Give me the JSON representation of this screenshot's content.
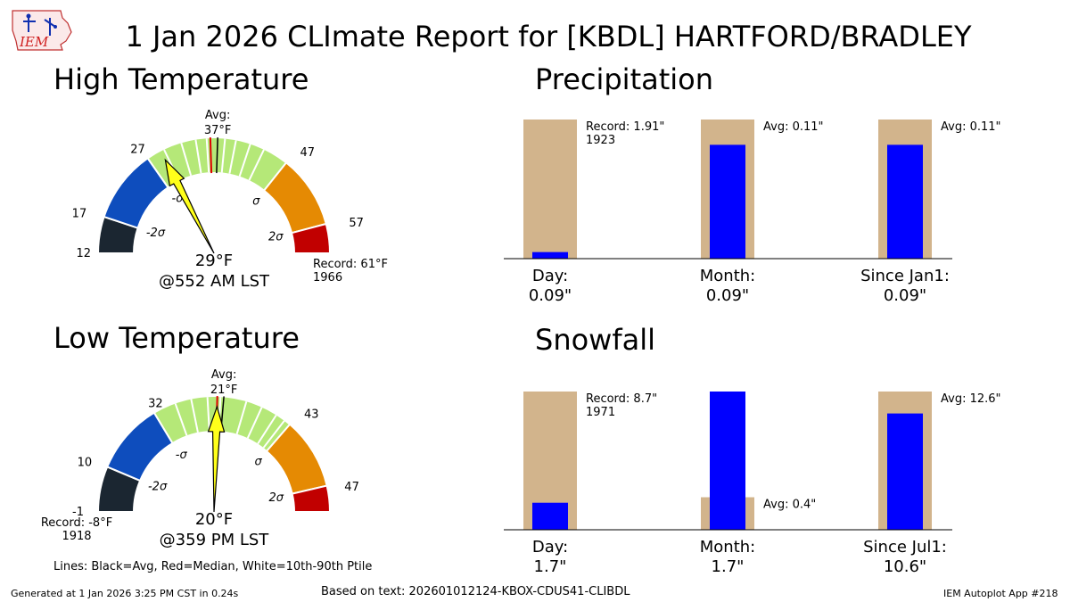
{
  "title": "1 Jan 2026 CLImate Report for [KBDL] HARTFORD/BRADLEY",
  "logo_text": "IEM",
  "colors": {
    "gauge_minus3": "#1b2631",
    "gauge_minus2": "#0e4dbd",
    "gauge_mid": "#b5e878",
    "gauge_plus2": "#e58a03",
    "gauge_plus3": "#c10000",
    "avg_line": "#000000",
    "median_line": "#e00000",
    "needle": "#ffff1a",
    "bar_bg": "#d2b48c",
    "bar_fg": "#0000ff"
  },
  "footer": {
    "lines_note": "Lines: Black=Avg, Red=Median, White=10th-90th Ptile",
    "generated": "Generated at 1 Jan 2026 3:25 PM CST in 0.24s",
    "based_on": "Based on text: 202601012124-KBOX-CDUS41-CLIBDL",
    "app": "IEM Autoplot App #218"
  },
  "chart_data": [
    {
      "type": "gauge",
      "title": "High Temperature",
      "range": [
        12,
        61
      ],
      "boundaries": [
        12,
        17,
        27,
        47,
        57,
        61
      ],
      "sigma_labels": [
        "-2σ",
        "-σ",
        "σ",
        "2σ"
      ],
      "avg": 37,
      "avg_label": "Avg:",
      "avg_value_label": "37°F",
      "median": 36,
      "ptile_lines": [
        29.5,
        32,
        34,
        35.5,
        38,
        39.5,
        41.5,
        43.5
      ],
      "value": 29,
      "value_label": "29°F",
      "time_label": "@552 AM LST",
      "record_label": "Record: 61°F",
      "record_year": "1966",
      "tick_labels": [
        "12",
        "17",
        "27",
        "47",
        "57"
      ]
    },
    {
      "type": "gauge",
      "title": "Low Temperature",
      "range": [
        -8,
        47
      ],
      "boundaries": [
        -8,
        -1,
        10,
        32,
        43,
        47
      ],
      "sigma_labels": [
        "-2σ",
        "-σ",
        "σ",
        "2σ"
      ],
      "avg": 21,
      "avg_label": "Avg:",
      "avg_value_label": "21°F",
      "median": 20,
      "ptile_lines": [
        13.5,
        16,
        18.5,
        20.5,
        24.5,
        27,
        29.5,
        31
      ],
      "value": 20,
      "value_label": "20°F",
      "time_label": "@359 PM LST",
      "record_label": "Record: -8°F",
      "record_year": "1918",
      "tick_labels": [
        "-1",
        "10",
        "32",
        "43",
        "47"
      ]
    },
    {
      "type": "bar",
      "title": "Precipitation",
      "categories": [
        "Day:",
        "Month:",
        "Since Jan1:"
      ],
      "value_labels": [
        "0.09\"",
        "0.09\"",
        "0.09\""
      ],
      "values": [
        0.09,
        0.09,
        0.09
      ],
      "reference": [
        1.91,
        0.11,
        0.11
      ],
      "annotations": [
        "Record: 1.91\"",
        "Avg: 0.11\"",
        "Avg: 0.11\""
      ],
      "annotation_sub": [
        "1923",
        "",
        ""
      ]
    },
    {
      "type": "bar",
      "title": "Snowfall",
      "categories": [
        "Day:",
        "Month:",
        "Since Jul1:"
      ],
      "value_labels": [
        "1.7\"",
        "1.7\"",
        "10.6\""
      ],
      "values": [
        1.7,
        1.7,
        10.6
      ],
      "reference": [
        8.7,
        0.4,
        12.6
      ],
      "annotations": [
        "Record: 8.7\"",
        "Avg: 0.4\"",
        "Avg: 12.6\""
      ],
      "annotation_sub": [
        "1971",
        "",
        ""
      ]
    }
  ]
}
